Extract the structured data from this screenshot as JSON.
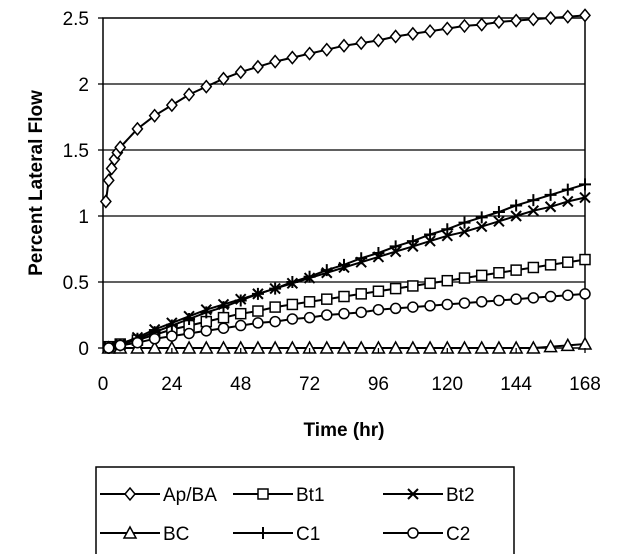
{
  "chart_data": {
    "type": "line",
    "xlabel": "Time (hr)",
    "ylabel": "Percent Lateral Flow",
    "xlim": [
      0,
      168
    ],
    "ylim": [
      0,
      2.5
    ],
    "xticks": [
      0,
      24,
      48,
      72,
      96,
      120,
      144,
      168
    ],
    "yticks": [
      0,
      0.5,
      1,
      1.5,
      2,
      2.5
    ],
    "xtick_labels": [
      "0",
      "24",
      "48",
      "72",
      "96",
      "120",
      "144",
      "168"
    ],
    "ytick_labels": [
      "0",
      "0.5",
      "1",
      "1.5",
      "2",
      "2.5"
    ],
    "grid": "horizontal",
    "legend_position": "bottom",
    "series": [
      {
        "name": "Ap/BA",
        "marker": "diamond",
        "x": [
          1,
          2,
          3,
          4,
          5,
          6,
          12,
          18,
          24,
          30,
          36,
          42,
          48,
          54,
          60,
          66,
          72,
          78,
          84,
          90,
          96,
          102,
          108,
          114,
          120,
          126,
          132,
          138,
          144,
          150,
          156,
          162,
          168
        ],
        "y": [
          1.11,
          1.27,
          1.36,
          1.43,
          1.48,
          1.52,
          1.66,
          1.76,
          1.84,
          1.92,
          1.98,
          2.04,
          2.09,
          2.13,
          2.17,
          2.2,
          2.23,
          2.26,
          2.29,
          2.31,
          2.33,
          2.36,
          2.38,
          2.4,
          2.42,
          2.44,
          2.45,
          2.47,
          2.48,
          2.49,
          2.5,
          2.51,
          2.52
        ]
      },
      {
        "name": "Bt1",
        "marker": "square",
        "x": [
          2,
          6,
          12,
          18,
          24,
          30,
          36,
          42,
          48,
          54,
          60,
          66,
          72,
          78,
          84,
          90,
          96,
          102,
          108,
          114,
          120,
          126,
          132,
          138,
          144,
          150,
          156,
          162,
          168
        ],
        "y": [
          0.01,
          0.03,
          0.06,
          0.1,
          0.14,
          0.17,
          0.2,
          0.23,
          0.26,
          0.28,
          0.31,
          0.33,
          0.35,
          0.37,
          0.39,
          0.41,
          0.43,
          0.45,
          0.47,
          0.49,
          0.51,
          0.53,
          0.55,
          0.57,
          0.59,
          0.61,
          0.63,
          0.65,
          0.67
        ]
      },
      {
        "name": "Bt2",
        "marker": "x",
        "x": [
          2,
          6,
          12,
          18,
          24,
          30,
          36,
          42,
          48,
          54,
          60,
          66,
          72,
          78,
          84,
          90,
          96,
          102,
          108,
          114,
          120,
          126,
          132,
          138,
          144,
          150,
          156,
          162,
          168
        ],
        "y": [
          0.01,
          0.03,
          0.08,
          0.14,
          0.19,
          0.24,
          0.29,
          0.33,
          0.37,
          0.41,
          0.45,
          0.49,
          0.53,
          0.57,
          0.61,
          0.65,
          0.69,
          0.73,
          0.77,
          0.81,
          0.85,
          0.88,
          0.92,
          0.96,
          1.0,
          1.04,
          1.07,
          1.11,
          1.14
        ]
      },
      {
        "name": "BC",
        "marker": "triangle",
        "x": [
          2,
          6,
          12,
          18,
          24,
          30,
          36,
          42,
          48,
          54,
          60,
          66,
          72,
          78,
          84,
          90,
          96,
          102,
          108,
          114,
          120,
          126,
          132,
          138,
          144,
          150,
          156,
          162,
          168
        ],
        "y": [
          0,
          0,
          0,
          0,
          0,
          0,
          0,
          0,
          0,
          0,
          0,
          0,
          0,
          0,
          0,
          0,
          0,
          0,
          0,
          0,
          0,
          0,
          0,
          0,
          0,
          0,
          0.01,
          0.02,
          0.03
        ]
      },
      {
        "name": "C1",
        "marker": "plus",
        "x": [
          2,
          6,
          12,
          18,
          24,
          30,
          36,
          42,
          48,
          54,
          60,
          66,
          72,
          78,
          84,
          90,
          96,
          102,
          108,
          114,
          120,
          126,
          132,
          138,
          144,
          150,
          156,
          162,
          168
        ],
        "y": [
          0,
          0.02,
          0.07,
          0.12,
          0.17,
          0.22,
          0.27,
          0.31,
          0.36,
          0.41,
          0.45,
          0.5,
          0.54,
          0.59,
          0.63,
          0.68,
          0.72,
          0.77,
          0.81,
          0.86,
          0.9,
          0.95,
          0.99,
          1.03,
          1.08,
          1.12,
          1.16,
          1.2,
          1.24
        ]
      },
      {
        "name": "C2",
        "marker": "circle",
        "x": [
          2,
          6,
          12,
          18,
          24,
          30,
          36,
          42,
          48,
          54,
          60,
          66,
          72,
          78,
          84,
          90,
          96,
          102,
          108,
          114,
          120,
          126,
          132,
          138,
          144,
          150,
          156,
          162,
          168
        ],
        "y": [
          0,
          0.02,
          0.04,
          0.07,
          0.09,
          0.11,
          0.13,
          0.15,
          0.17,
          0.19,
          0.2,
          0.22,
          0.23,
          0.25,
          0.26,
          0.27,
          0.29,
          0.3,
          0.31,
          0.32,
          0.33,
          0.34,
          0.35,
          0.36,
          0.37,
          0.38,
          0.39,
          0.4,
          0.41
        ]
      }
    ]
  }
}
